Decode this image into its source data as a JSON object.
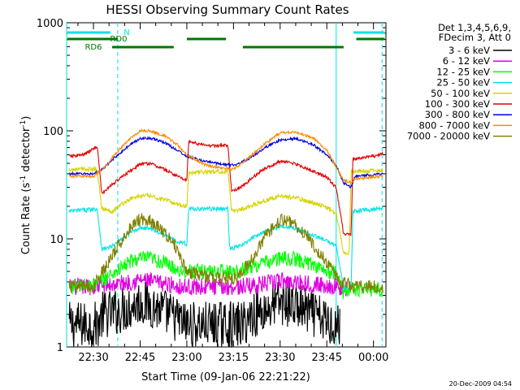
{
  "chart_data": {
    "type": "line",
    "title": "HESSI Observing Summary Count Rates",
    "xlabel": "Start Time (09-Jan-06 22:21:22)",
    "ylabel_main": "Count Rate (s",
    "ylabel_exp1": "-1",
    "ylabel_mid": " detector",
    "ylabel_exp2": "-1",
    "ylabel_end": ")",
    "yscale": "log",
    "ylim": [
      1,
      1000
    ],
    "xlim": [
      22.3561,
      24.0667
    ],
    "x_units": "decimal hours UT (24.0 = 00:00)",
    "xticks": [
      {
        "v": 22.5,
        "label": "22:30"
      },
      {
        "v": 22.75,
        "label": "22:45"
      },
      {
        "v": 23.0,
        "label": "23:00"
      },
      {
        "v": 23.25,
        "label": "23:15"
      },
      {
        "v": 23.5,
        "label": "23:30"
      },
      {
        "v": 23.75,
        "label": "23:45"
      },
      {
        "v": 24.0,
        "label": "00:00"
      }
    ],
    "yticks": [
      {
        "v": 1,
        "label": "1"
      },
      {
        "v": 10,
        "label": "10"
      },
      {
        "v": 100,
        "label": "100"
      },
      {
        "v": 1000,
        "label": "1000"
      }
    ],
    "legend_header": [
      "Det 1,3,4,5,6,9,",
      "FDecim 3, Att 0"
    ],
    "legend_position": "right",
    "flags": [
      {
        "label": "N",
        "color": "#00e5e5",
        "segments": [
          [
            22.36,
            22.59
          ],
          [
            23.893,
            24.06
          ]
        ]
      },
      {
        "label": "RD0",
        "color": "#007800",
        "segments": [
          [
            22.36,
            22.63
          ],
          [
            23.0,
            23.21
          ],
          [
            23.908,
            24.06
          ]
        ]
      },
      {
        "label": "RD6",
        "color": "#007800",
        "segments": [
          [
            22.6,
            22.93
          ],
          [
            23.3,
            23.84
          ]
        ]
      }
    ],
    "cyan_solid_lines": [
      22.356,
      23.8
    ],
    "cyan_dashed_lines": [
      22.63,
      24.046
    ],
    "series": [
      {
        "name": "3 - 6 keV",
        "color": "#000000",
        "points": [
          [
            22.37,
            1.6
          ],
          [
            22.52,
            1.6
          ],
          [
            22.55,
            2.0
          ],
          [
            22.62,
            2.1
          ],
          [
            22.68,
            2.3
          ],
          [
            22.75,
            2.6
          ],
          [
            22.82,
            2.4
          ],
          [
            22.88,
            2.1
          ],
          [
            22.95,
            1.8
          ],
          [
            23.0,
            1.6
          ],
          [
            23.2,
            1.6
          ],
          [
            23.3,
            1.6
          ],
          [
            23.35,
            2.0
          ],
          [
            23.42,
            2.2
          ],
          [
            23.5,
            2.6
          ],
          [
            23.58,
            2.4
          ],
          [
            23.65,
            2.1
          ],
          [
            23.72,
            1.8
          ],
          [
            23.8,
            1.6
          ],
          [
            23.82,
            1.6
          ]
        ]
      },
      {
        "name": "6 - 12 keV",
        "color": "#e000e0",
        "points": [
          [
            22.37,
            3.6
          ],
          [
            22.5,
            3.6
          ],
          [
            22.55,
            3.7
          ],
          [
            22.62,
            3.8
          ],
          [
            22.7,
            4.0
          ],
          [
            22.75,
            4.2
          ],
          [
            22.82,
            4.0
          ],
          [
            22.9,
            3.8
          ],
          [
            22.98,
            3.6
          ],
          [
            23.2,
            3.6
          ],
          [
            23.28,
            3.6
          ],
          [
            23.35,
            3.7
          ],
          [
            23.45,
            3.9
          ],
          [
            23.5,
            4.1
          ],
          [
            23.58,
            4.0
          ],
          [
            23.68,
            3.8
          ],
          [
            23.8,
            3.6
          ],
          [
            23.86,
            3.5
          ]
        ]
      },
      {
        "name": "12 - 25 keV",
        "color": "#00ff00",
        "points": [
          [
            22.37,
            3.6
          ],
          [
            22.52,
            3.8
          ],
          [
            22.55,
            4.2
          ],
          [
            22.62,
            5.0
          ],
          [
            22.7,
            6.2
          ],
          [
            22.75,
            6.6
          ],
          [
            22.8,
            6.6
          ],
          [
            22.88,
            6.0
          ],
          [
            22.95,
            5.2
          ],
          [
            23.0,
            5.0
          ],
          [
            23.2,
            5.0
          ],
          [
            23.28,
            5.0
          ],
          [
            23.33,
            5.5
          ],
          [
            23.42,
            6.0
          ],
          [
            23.5,
            6.6
          ],
          [
            23.58,
            6.5
          ],
          [
            23.68,
            5.8
          ],
          [
            23.75,
            5.0
          ],
          [
            23.8,
            4.8
          ],
          [
            23.84,
            3.2
          ],
          [
            23.87,
            3.4
          ],
          [
            24.05,
            3.4
          ]
        ]
      },
      {
        "name": "25 - 50 keV",
        "color": "#00e5e5",
        "points": [
          [
            22.37,
            18
          ],
          [
            22.52,
            19
          ],
          [
            22.545,
            8
          ],
          [
            22.6,
            8.5
          ],
          [
            22.7,
            11.5
          ],
          [
            22.75,
            12.8
          ],
          [
            22.8,
            12.5
          ],
          [
            22.88,
            11.0
          ],
          [
            22.95,
            9.5
          ],
          [
            23.0,
            9.0
          ],
          [
            23.01,
            19
          ],
          [
            23.2,
            19
          ],
          [
            23.22,
            19
          ],
          [
            23.23,
            8
          ],
          [
            23.3,
            8.8
          ],
          [
            23.4,
            11.5
          ],
          [
            23.5,
            13.0
          ],
          [
            23.58,
            12.5
          ],
          [
            23.68,
            10.8
          ],
          [
            23.75,
            9.5
          ],
          [
            23.8,
            8.8
          ],
          [
            23.84,
            3.5
          ],
          [
            23.88,
            3.5
          ],
          [
            23.89,
            18
          ],
          [
            24.05,
            19
          ]
        ]
      },
      {
        "name": "50 - 100 keV",
        "color": "#d4d400",
        "points": [
          [
            22.37,
            44
          ],
          [
            22.52,
            44
          ],
          [
            22.545,
            19
          ],
          [
            22.6,
            18
          ],
          [
            22.65,
            21
          ],
          [
            22.7,
            23.5
          ],
          [
            22.75,
            25
          ],
          [
            22.8,
            25
          ],
          [
            22.88,
            23
          ],
          [
            22.95,
            21
          ],
          [
            23.0,
            20
          ],
          [
            23.01,
            41
          ],
          [
            23.2,
            42
          ],
          [
            23.22,
            42
          ],
          [
            23.24,
            18
          ],
          [
            23.3,
            19
          ],
          [
            23.4,
            22
          ],
          [
            23.5,
            25
          ],
          [
            23.58,
            24
          ],
          [
            23.68,
            21.5
          ],
          [
            23.75,
            19.5
          ],
          [
            23.8,
            17.5
          ],
          [
            23.84,
            7.5
          ],
          [
            23.87,
            7.5
          ],
          [
            23.88,
            42
          ],
          [
            24.05,
            43
          ]
        ]
      },
      {
        "name": "100 - 300 keV",
        "color": "#e00000",
        "points": [
          [
            22.37,
            58
          ],
          [
            22.45,
            60
          ],
          [
            22.52,
            72
          ],
          [
            22.545,
            26
          ],
          [
            22.6,
            32
          ],
          [
            22.7,
            43
          ],
          [
            22.75,
            49
          ],
          [
            22.8,
            50
          ],
          [
            22.88,
            44
          ],
          [
            22.95,
            38
          ],
          [
            23.0,
            35
          ],
          [
            23.01,
            80
          ],
          [
            23.1,
            73
          ],
          [
            23.2,
            73
          ],
          [
            23.22,
            73
          ],
          [
            23.24,
            27
          ],
          [
            23.3,
            31
          ],
          [
            23.4,
            43
          ],
          [
            23.5,
            52
          ],
          [
            23.58,
            50
          ],
          [
            23.68,
            42
          ],
          [
            23.75,
            37
          ],
          [
            23.8,
            30
          ],
          [
            23.84,
            11
          ],
          [
            23.88,
            11
          ],
          [
            23.89,
            55
          ],
          [
            24.0,
            58
          ],
          [
            24.05,
            62
          ]
        ]
      },
      {
        "name": "300 - 800 keV",
        "color": "#0000e0",
        "points": [
          [
            22.37,
            40
          ],
          [
            22.5,
            40
          ],
          [
            22.55,
            44
          ],
          [
            22.62,
            58
          ],
          [
            22.7,
            75
          ],
          [
            22.75,
            85
          ],
          [
            22.8,
            86
          ],
          [
            22.88,
            78
          ],
          [
            22.95,
            66
          ],
          [
            23.0,
            58
          ],
          [
            23.1,
            52
          ],
          [
            23.2,
            49
          ],
          [
            23.25,
            48
          ],
          [
            23.33,
            55
          ],
          [
            23.42,
            70
          ],
          [
            23.5,
            82
          ],
          [
            23.58,
            85
          ],
          [
            23.68,
            74
          ],
          [
            23.75,
            60
          ],
          [
            23.8,
            48
          ],
          [
            23.84,
            33
          ],
          [
            23.88,
            30
          ],
          [
            23.9,
            38
          ],
          [
            24.05,
            40
          ]
        ]
      },
      {
        "name": "800 - 7000 keV",
        "color": "#ff8800",
        "points": [
          [
            22.37,
            38
          ],
          [
            22.5,
            38
          ],
          [
            22.55,
            44
          ],
          [
            22.62,
            62
          ],
          [
            22.7,
            86
          ],
          [
            22.75,
            100
          ],
          [
            22.8,
            100
          ],
          [
            22.88,
            90
          ],
          [
            22.95,
            74
          ],
          [
            23.0,
            60
          ],
          [
            23.1,
            48
          ],
          [
            23.2,
            45
          ],
          [
            23.25,
            44
          ],
          [
            23.33,
            56
          ],
          [
            23.42,
            76
          ],
          [
            23.5,
            96
          ],
          [
            23.58,
            97
          ],
          [
            23.68,
            86
          ],
          [
            23.75,
            66
          ],
          [
            23.8,
            46
          ],
          [
            23.84,
            35
          ],
          [
            23.88,
            33
          ],
          [
            23.9,
            36
          ],
          [
            24.05,
            38
          ]
        ]
      },
      {
        "name": "7000 - 20000 keV",
        "color": "#808000",
        "points": [
          [
            22.37,
            3.6
          ],
          [
            22.5,
            3.6
          ],
          [
            22.53,
            4.5
          ],
          [
            22.58,
            6.0
          ],
          [
            22.62,
            8.0
          ],
          [
            22.7,
            13.0
          ],
          [
            22.75,
            15.5
          ],
          [
            22.8,
            15.0
          ],
          [
            22.88,
            11.5
          ],
          [
            22.95,
            8.0
          ],
          [
            23.0,
            5.0
          ],
          [
            23.1,
            4.5
          ],
          [
            23.2,
            4.3
          ],
          [
            23.27,
            4.3
          ],
          [
            23.3,
            5.0
          ],
          [
            23.36,
            7.0
          ],
          [
            23.42,
            10.5
          ],
          [
            23.5,
            15.0
          ],
          [
            23.56,
            14.5
          ],
          [
            23.64,
            11.0
          ],
          [
            23.72,
            7.0
          ],
          [
            23.78,
            5.0
          ],
          [
            23.82,
            4.0
          ],
          [
            23.9,
            3.6
          ],
          [
            24.05,
            3.6
          ]
        ]
      }
    ]
  },
  "footer": {
    "timestamp": "20-Dec-2009 04:54"
  }
}
